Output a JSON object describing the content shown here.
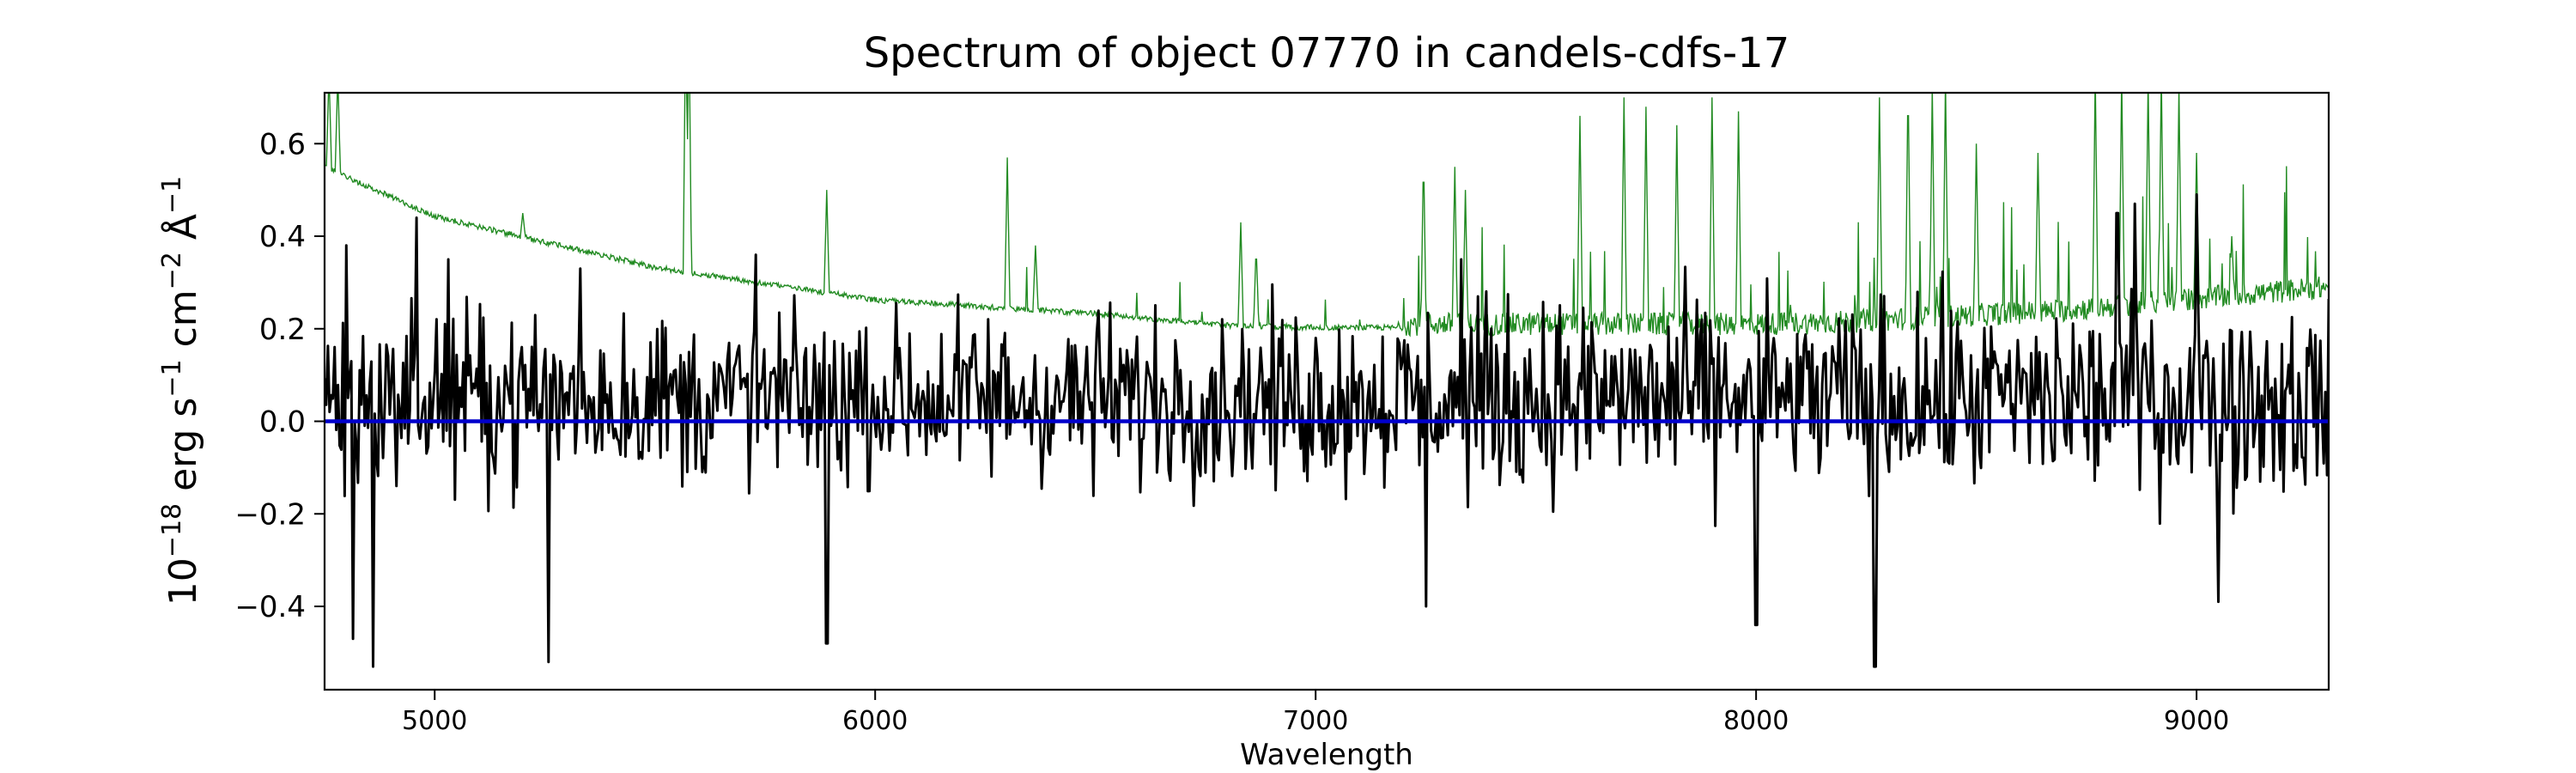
{
  "chart_data": {
    "type": "line",
    "title": "Spectrum of object 07770 in candels-cdfs-17",
    "xlabel": "Wavelength",
    "ylabel": {
      "base": "10",
      "exp1": "−18",
      "unit1": " erg s",
      "exp2": "−1",
      "unit2": " cm",
      "exp3": "−2",
      "unit3": " Å",
      "exp4": "−1"
    },
    "xlim": [
      4750,
      9300
    ],
    "ylim": [
      -0.58,
      0.71
    ],
    "xticks": [
      5000,
      6000,
      7000,
      8000,
      9000
    ],
    "xtick_labels": [
      "5000",
      "6000",
      "7000",
      "8000",
      "9000"
    ],
    "yticks": [
      -0.4,
      -0.2,
      0.0,
      0.2,
      0.4,
      0.6
    ],
    "ytick_labels": [
      "−0.4",
      "−0.2",
      "0.0",
      "0.2",
      "0.4",
      "0.6"
    ],
    "grid": false,
    "series": [
      {
        "role": "noise spectrum",
        "color": "#228b22",
        "continuum_knots": [
          [
            4750,
            0.55
          ],
          [
            4790,
            0.53
          ],
          [
            5000,
            0.44
          ],
          [
            5500,
            0.33
          ],
          [
            6000,
            0.26
          ],
          [
            6500,
            0.23
          ],
          [
            6800,
            0.205
          ],
          [
            7000,
            0.2
          ],
          [
            7200,
            0.2
          ],
          [
            7600,
            0.2
          ],
          [
            8000,
            0.2
          ],
          [
            8200,
            0.205
          ],
          [
            8700,
            0.23
          ],
          [
            9300,
            0.28
          ]
        ],
        "line_features": [
          [
            4760,
            0.75
          ],
          [
            4780,
            0.75
          ],
          [
            5200,
            0.45
          ],
          [
            5570,
            0.9
          ],
          [
            5577,
            0.9
          ],
          [
            5890,
            0.5
          ],
          [
            6300,
            0.57
          ],
          [
            6364,
            0.38
          ],
          [
            6830,
            0.43
          ],
          [
            6865,
            0.38
          ],
          [
            7245,
            0.58
          ],
          [
            7316,
            0.55
          ],
          [
            7340,
            0.5
          ],
          [
            7600,
            0.66
          ],
          [
            7700,
            0.7
          ],
          [
            7750,
            0.68
          ],
          [
            7820,
            0.64
          ],
          [
            7900,
            0.7
          ],
          [
            7960,
            0.67
          ],
          [
            8280,
            0.7
          ],
          [
            8345,
            0.75
          ],
          [
            8400,
            0.72
          ],
          [
            8430,
            0.74
          ],
          [
            8500,
            0.6
          ],
          [
            8640,
            0.58
          ],
          [
            8770,
            0.75
          ],
          [
            8830,
            0.75
          ],
          [
            8890,
            0.74
          ],
          [
            8920,
            0.75
          ],
          [
            8960,
            0.72
          ],
          [
            9000,
            0.58
          ],
          [
            9080,
            0.4
          ]
        ]
      },
      {
        "role": "observed spectrum",
        "color": "#000000",
        "x_start": 4750,
        "x_end": 9300,
        "points": 1200,
        "baseline": -0.07,
        "noise_amplitude": 0.13,
        "peaks": [
          [
            4800,
            0.38
          ],
          [
            4815,
            -0.47
          ],
          [
            4860,
            -0.53
          ],
          [
            4960,
            0.44
          ],
          [
            5030,
            0.35
          ],
          [
            5260,
            -0.52
          ],
          [
            5330,
            0.33
          ],
          [
            5730,
            0.36
          ],
          [
            5890,
            -0.48
          ],
          [
            7250,
            -0.4
          ],
          [
            7330,
            0.35
          ],
          [
            8000,
            -0.44
          ],
          [
            8270,
            -0.53
          ],
          [
            8820,
            0.45
          ],
          [
            8860,
            0.47
          ],
          [
            9000,
            0.49
          ],
          [
            9050,
            -0.39
          ]
        ]
      },
      {
        "role": "zero model",
        "color": "#0000cc",
        "values": [
          [
            4750,
            0.0
          ],
          [
            9300,
            0.0
          ]
        ]
      }
    ]
  }
}
